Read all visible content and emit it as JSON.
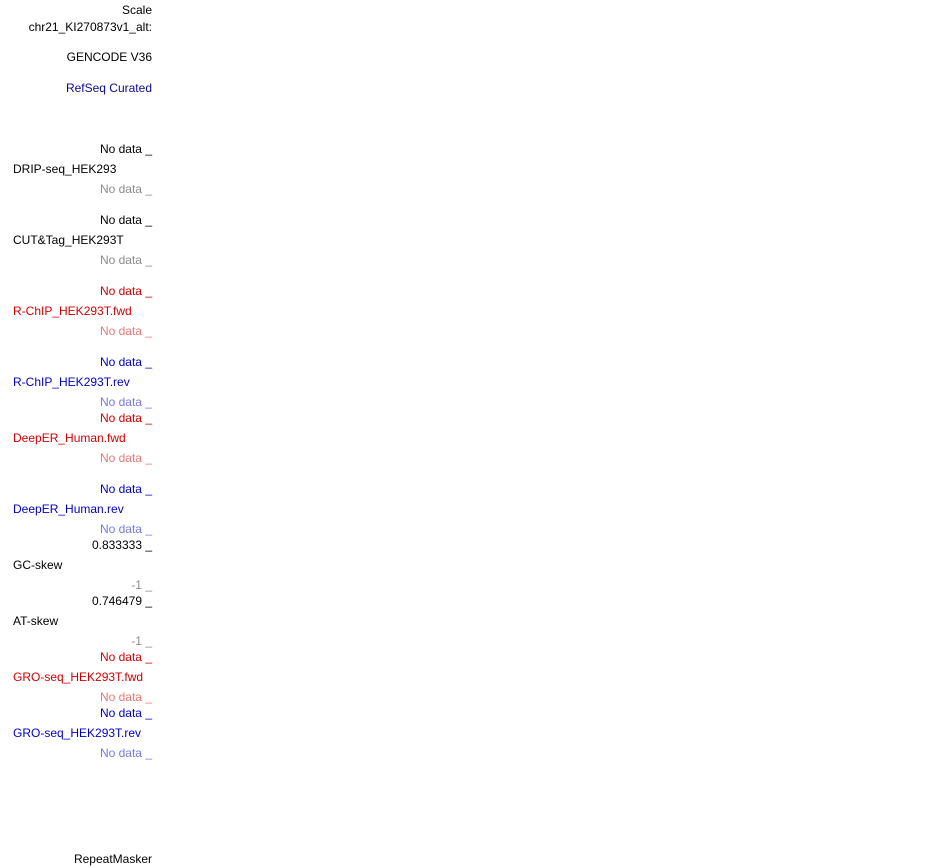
{
  "labels": {
    "scale": "Scale",
    "chrom": "chr21_KI270873v1_alt:",
    "gencode": "GENCODE V36",
    "refseq": "RefSeq Curated",
    "drip_top": "No data _",
    "drip_name": "DRIP-seq_HEK293",
    "drip_bot": "No data _",
    "cut_top": "No data _",
    "cut_name": "CUT&Tag_HEK293T",
    "cut_bot": "No data _",
    "rchip_fwd_top": "No data _",
    "rchip_fwd_name": "R-ChIP_HEK293T.fwd",
    "rchip_fwd_bot": "No data _",
    "rchip_rev_top": "No data _",
    "rchip_rev_name": "R-ChIP_HEK293T.rev",
    "rchip_rev_bot": "No data _",
    "deeper_fwd_top": "No data _",
    "deeper_fwd_name": "DeepER_Human.fwd",
    "deeper_fwd_bot": "No data _",
    "deeper_rev_top": "No data _",
    "deeper_rev_name": "DeepER_Human.rev",
    "deeper_rev_bot": "No data _",
    "gc_top": "0.833333 _",
    "gc_name": "GC-skew",
    "gc_bot": "-1 _",
    "at_top": "0.746479 _",
    "at_name": "AT-skew",
    "at_bot": "-1 _",
    "gro_fwd_top": "No data _",
    "gro_fwd_name": "GRO-seq_HEK293T.fwd",
    "gro_fwd_bot": "No data _",
    "gro_rev_top": "No data _",
    "gro_rev_name": "GRO-seq_HEK293T.rev",
    "gro_rev_bot": "No data _",
    "repeatmasker": "RepeatMasker"
  },
  "colors": {
    "black": "#000000",
    "gray": "#8c8c8c",
    "navy": "#0a0a8c",
    "red": "#d20000",
    "light_red": "#e87878",
    "blue": "#0000c8",
    "light_blue": "#7878e0"
  }
}
